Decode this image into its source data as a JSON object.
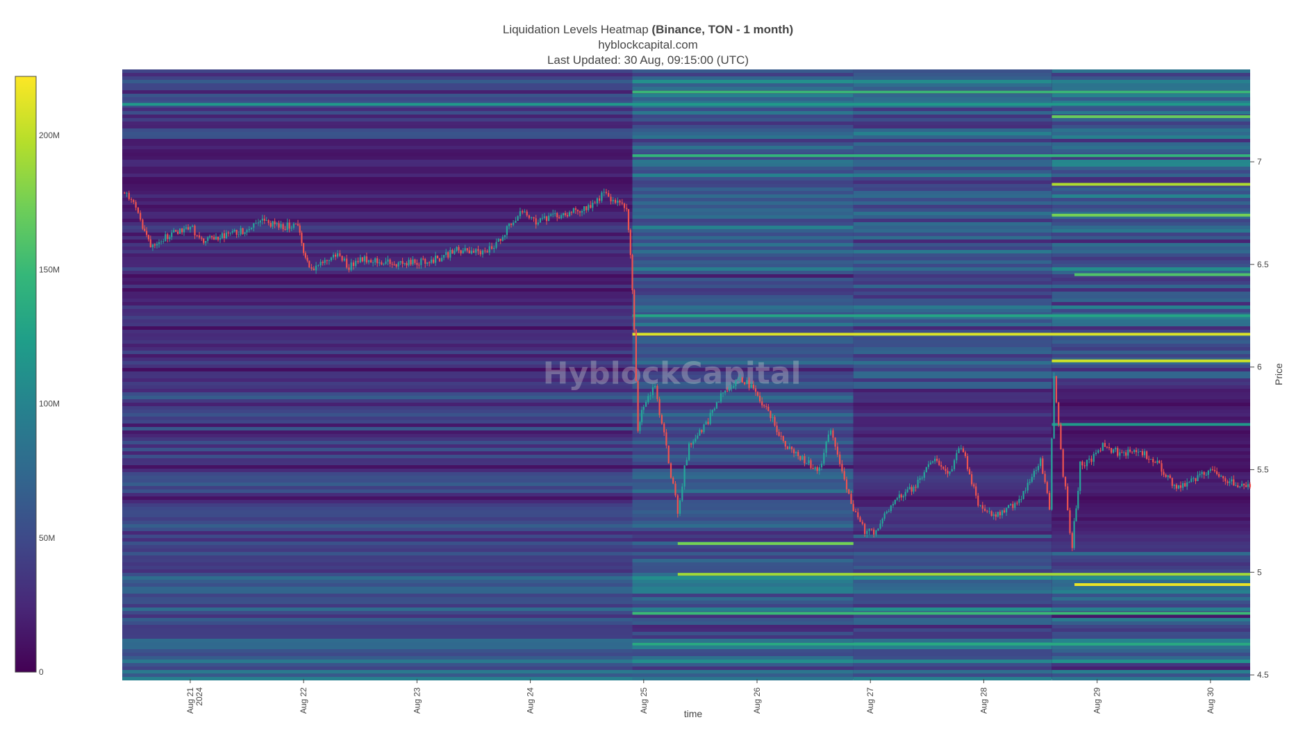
{
  "title": {
    "main": "Liquidation Levels Heatmap",
    "main_bold": "(Binance, TON - 1 month)",
    "source": "hyblockcapital.com",
    "updated": "Last Updated: 30 Aug, 09:15:00 (UTC)"
  },
  "watermark": "HyblockCapital",
  "colors": {
    "viridis": [
      "#440154",
      "#482878",
      "#3e4989",
      "#31688e",
      "#26828e",
      "#1f9e89",
      "#35b779",
      "#6ece58",
      "#b5de2b",
      "#fde725"
    ],
    "candle_up": "#26a69a",
    "candle_down": "#ef5350",
    "axis_text": "#444444"
  },
  "chart_data": {
    "type": "heatmap",
    "xlabel": "time",
    "ylabel": "Price",
    "x_ticks": [
      {
        "day": 21,
        "label": "Aug 21",
        "sub": "2024"
      },
      {
        "day": 22,
        "label": "Aug 22",
        "sub": ""
      },
      {
        "day": 23,
        "label": "Aug 23",
        "sub": ""
      },
      {
        "day": 24,
        "label": "Aug 24",
        "sub": ""
      },
      {
        "day": 25,
        "label": "Aug 25",
        "sub": ""
      },
      {
        "day": 26,
        "label": "Aug 26",
        "sub": ""
      },
      {
        "day": 27,
        "label": "Aug 27",
        "sub": ""
      },
      {
        "day": 28,
        "label": "Aug 28",
        "sub": ""
      },
      {
        "day": 29,
        "label": "Aug 29",
        "sub": ""
      },
      {
        "day": 30,
        "label": "Aug 30",
        "sub": ""
      }
    ],
    "xlim": [
      20.4,
      30.35
    ],
    "y_ticks": [
      "4.5",
      "5",
      "5.5",
      "6",
      "6.5",
      "7"
    ],
    "ylim": [
      4.48,
      7.45
    ],
    "colorbar": {
      "ticks": [
        "0",
        "50M",
        "100M",
        "150M",
        "200M"
      ],
      "range": [
        0,
        222000000
      ]
    },
    "regime_breaks": [
      24.9,
      26.85,
      28.6
    ],
    "price_path": [
      [
        20.4,
        6.85
      ],
      [
        20.5,
        6.82
      ],
      [
        20.58,
        6.68
      ],
      [
        20.65,
        6.6
      ],
      [
        20.8,
        6.64
      ],
      [
        21.0,
        6.69
      ],
      [
        21.1,
        6.61
      ],
      [
        21.3,
        6.64
      ],
      [
        21.5,
        6.67
      ],
      [
        21.6,
        6.72
      ],
      [
        21.8,
        6.68
      ],
      [
        21.95,
        6.7
      ],
      [
        22.0,
        6.55
      ],
      [
        22.05,
        6.48
      ],
      [
        22.15,
        6.5
      ],
      [
        22.3,
        6.55
      ],
      [
        22.4,
        6.49
      ],
      [
        22.5,
        6.53
      ],
      [
        22.65,
        6.52
      ],
      [
        22.8,
        6.5
      ],
      [
        23.0,
        6.51
      ],
      [
        23.2,
        6.53
      ],
      [
        23.35,
        6.57
      ],
      [
        23.5,
        6.56
      ],
      [
        23.6,
        6.56
      ],
      [
        23.7,
        6.6
      ],
      [
        23.85,
        6.72
      ],
      [
        23.95,
        6.76
      ],
      [
        24.05,
        6.71
      ],
      [
        24.2,
        6.73
      ],
      [
        24.4,
        6.76
      ],
      [
        24.55,
        6.79
      ],
      [
        24.65,
        6.85
      ],
      [
        24.75,
        6.8
      ],
      [
        24.85,
        6.78
      ],
      [
        24.9,
        6.4
      ],
      [
        24.95,
        5.7
      ],
      [
        25.0,
        5.82
      ],
      [
        25.1,
        5.9
      ],
      [
        25.2,
        5.6
      ],
      [
        25.3,
        5.3
      ],
      [
        25.4,
        5.62
      ],
      [
        25.55,
        5.72
      ],
      [
        25.7,
        5.88
      ],
      [
        25.85,
        5.95
      ],
      [
        25.95,
        5.9
      ],
      [
        26.1,
        5.78
      ],
      [
        26.25,
        5.62
      ],
      [
        26.4,
        5.55
      ],
      [
        26.55,
        5.5
      ],
      [
        26.65,
        5.7
      ],
      [
        26.75,
        5.5
      ],
      [
        26.85,
        5.3
      ],
      [
        26.95,
        5.2
      ],
      [
        27.05,
        5.2
      ],
      [
        27.2,
        5.35
      ],
      [
        27.4,
        5.42
      ],
      [
        27.55,
        5.55
      ],
      [
        27.7,
        5.48
      ],
      [
        27.8,
        5.62
      ],
      [
        27.95,
        5.35
      ],
      [
        28.05,
        5.28
      ],
      [
        28.2,
        5.3
      ],
      [
        28.35,
        5.38
      ],
      [
        28.5,
        5.55
      ],
      [
        28.58,
        5.32
      ],
      [
        28.62,
        5.98
      ],
      [
        28.68,
        5.58
      ],
      [
        28.78,
        5.12
      ],
      [
        28.85,
        5.52
      ],
      [
        28.95,
        5.55
      ],
      [
        29.05,
        5.62
      ],
      [
        29.2,
        5.58
      ],
      [
        29.4,
        5.58
      ],
      [
        29.55,
        5.52
      ],
      [
        29.7,
        5.4
      ],
      [
        29.85,
        5.45
      ],
      [
        30.0,
        5.5
      ],
      [
        30.15,
        5.45
      ],
      [
        30.35,
        5.41
      ]
    ],
    "bright_bands": [
      {
        "price": 6.16,
        "from": 24.9,
        "to": 30.35,
        "value": 210000000
      },
      {
        "price": 6.03,
        "from": 28.6,
        "to": 30.35,
        "value": 205000000
      },
      {
        "price": 6.89,
        "from": 28.6,
        "to": 30.35,
        "value": 195000000
      },
      {
        "price": 6.74,
        "from": 28.6,
        "to": 30.35,
        "value": 175000000
      },
      {
        "price": 4.94,
        "from": 28.8,
        "to": 30.35,
        "value": 215000000
      },
      {
        "price": 4.99,
        "from": 25.3,
        "to": 30.35,
        "value": 190000000
      },
      {
        "price": 5.14,
        "from": 25.3,
        "to": 26.85,
        "value": 175000000
      },
      {
        "price": 7.34,
        "from": 24.9,
        "to": 30.35,
        "value": 150000000
      },
      {
        "price": 7.22,
        "from": 28.6,
        "to": 30.35,
        "value": 170000000
      },
      {
        "price": 7.03,
        "from": 24.9,
        "to": 30.35,
        "value": 145000000
      },
      {
        "price": 6.45,
        "from": 28.8,
        "to": 30.35,
        "value": 160000000
      },
      {
        "price": 6.25,
        "from": 24.9,
        "to": 30.35,
        "value": 130000000
      },
      {
        "price": 5.72,
        "from": 28.6,
        "to": 30.35,
        "value": 120000000
      },
      {
        "price": 4.8,
        "from": 24.9,
        "to": 30.35,
        "value": 150000000
      },
      {
        "price": 4.65,
        "from": 24.9,
        "to": 30.35,
        "value": 135000000
      },
      {
        "price": 7.28,
        "from": 20.4,
        "to": 30.35,
        "value": 120000000
      }
    ]
  }
}
